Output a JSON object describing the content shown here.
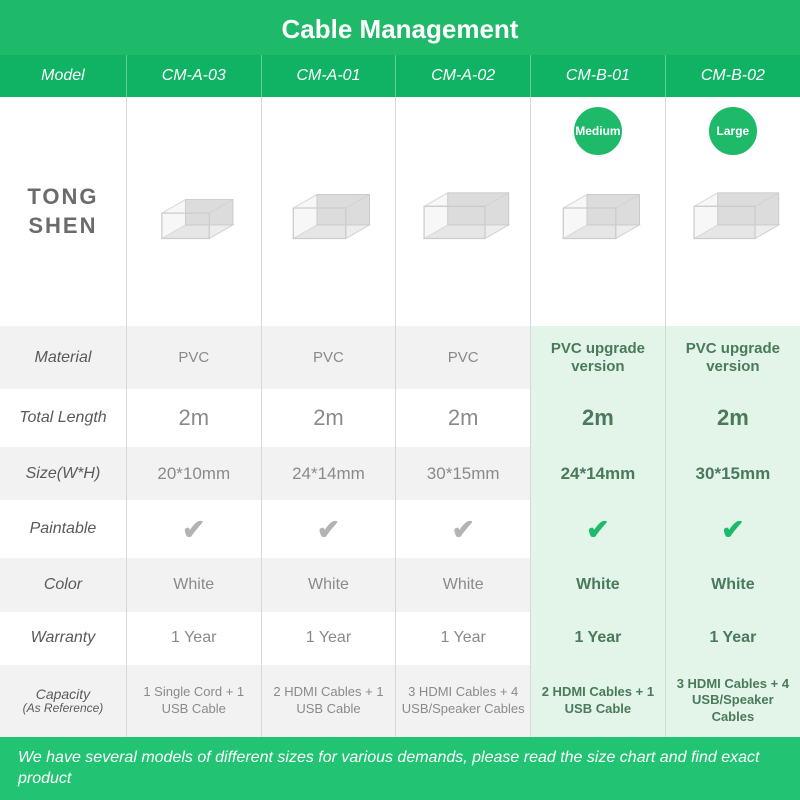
{
  "colors": {
    "brand_green": "#1fb96a",
    "header_green": "#0fb363",
    "highlight_bg": "#e3f4e8",
    "light_bg": "#f2f2f2",
    "white": "#ffffff",
    "border": "#d8d8d8",
    "text_white": "#ffffff",
    "text_gray": "#8a8a8a",
    "text_dark": "#5a5a5a",
    "brand_text": "#6b6b6b",
    "check_gray": "#b3b3b3",
    "check_green": "#1fb96a",
    "footer_green": "#22c373"
  },
  "title": "Cable Management",
  "brand": {
    "line1": "TONG",
    "line2": "SHEN"
  },
  "header_labels": {
    "model": "Model",
    "material": "Material",
    "total_length": "Total Length",
    "size": "Size(W*H)",
    "paintable": "Paintable",
    "color": "Color",
    "warranty": "Warranty",
    "capacity_l1": "Capacity",
    "capacity_l2": "(As Reference)"
  },
  "columns": [
    {
      "model": "CM-A-03",
      "badge": null,
      "material": "PVC",
      "length": "2m",
      "size": "20*10mm",
      "check_color": "gray",
      "color": "White",
      "warranty": "1 Year",
      "capacity": "1 Single Cord + 1 USB Cable",
      "highlight": false,
      "bold": false,
      "cable_w": 56,
      "cable_h": 30
    },
    {
      "model": "CM-A-01",
      "badge": null,
      "material": "PVC",
      "length": "2m",
      "size": "24*14mm",
      "check_color": "gray",
      "color": "White",
      "warranty": "1 Year",
      "capacity": "2 HDMI Cables + 1 USB Cable",
      "highlight": false,
      "bold": false,
      "cable_w": 62,
      "cable_h": 36
    },
    {
      "model": "CM-A-02",
      "badge": null,
      "material": "PVC",
      "length": "2m",
      "size": "30*15mm",
      "check_color": "gray",
      "color": "White",
      "warranty": "1 Year",
      "capacity": "3 HDMI Cables + 4 USB/Speaker Cables",
      "highlight": false,
      "bold": false,
      "cable_w": 72,
      "cable_h": 38
    },
    {
      "model": "CM-B-01",
      "badge": "Medium",
      "material": "PVC upgrade version",
      "length": "2m",
      "size": "24*14mm",
      "check_color": "green",
      "color": "White",
      "warranty": "1 Year",
      "capacity": "2 HDMI Cables + 1 USB Cable",
      "highlight": true,
      "bold": true,
      "cable_w": 62,
      "cable_h": 36
    },
    {
      "model": "CM-B-02",
      "badge": "Large",
      "material": "PVC upgrade version",
      "length": "2m",
      "size": "30*15mm",
      "check_color": "green",
      "color": "White",
      "warranty": "1 Year",
      "capacity": "3 HDMI Cables + 4 USB/Speaker Cables",
      "highlight": true,
      "bold": true,
      "cable_w": 72,
      "cable_h": 38
    }
  ],
  "footer": "We have several models of different sizes for various demands, please read the size chart and find exact product"
}
